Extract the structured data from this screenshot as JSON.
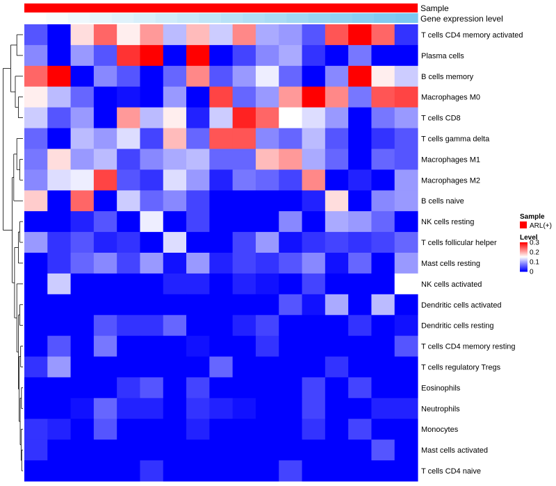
{
  "chart_data": {
    "type": "heatmap",
    "colors": {
      "low": "#0000FF",
      "mid": "#FFFFFF",
      "high": "#FF0000",
      "sample_bar": "#FF0000"
    },
    "annotations": {
      "sample_label": "Sample",
      "expression_label": "Gene expression level",
      "expression_values": [
        0.0,
        0.06,
        0.12,
        0.18,
        0.24,
        0.3,
        0.36,
        0.42,
        0.48,
        0.54,
        0.6,
        0.66,
        0.72,
        0.78,
        0.84,
        0.9,
        0.96,
        1.0
      ]
    },
    "rows": [
      "T cells CD4 memory activated",
      "Plasma cells",
      "B cells memory",
      "Macrophages M0",
      "T cells CD8",
      "T cells gamma delta",
      "Macrophages M1",
      "Macrophages M2",
      "B cells naive",
      "NK cells resting",
      "T cells follicular helper",
      "Mast cells resting",
      "NK cells activated",
      "Dendritic cells activated",
      "Dendritic cells resting",
      "T cells CD4 memory resting",
      "T cells regulatory  Tregs",
      "Eosinophils",
      "Neutrophils",
      "Monocytes",
      "Mast cells activated",
      "T cells CD4 naive"
    ],
    "values": [
      [
        0.05,
        0.0,
        0.17,
        0.24,
        0.16,
        0.21,
        0.11,
        0.19,
        0.12,
        0.22,
        0.1,
        0.09,
        0.05,
        0.25,
        0.31,
        0.24,
        0.03
      ],
      [
        0.08,
        0.0,
        0.09,
        0.05,
        0.27,
        0.31,
        0.0,
        0.31,
        0.0,
        0.04,
        0.08,
        0.1,
        0.03,
        0.0,
        0.07,
        0.0,
        0.0
      ],
      [
        0.24,
        0.31,
        0.0,
        0.08,
        0.05,
        0.0,
        0.06,
        0.22,
        0.05,
        0.09,
        0.14,
        0.06,
        0.0,
        0.08,
        0.31,
        0.16,
        0.12
      ],
      [
        0.16,
        0.11,
        0.06,
        0.0,
        0.01,
        0.0,
        0.09,
        0.0,
        0.26,
        0.06,
        0.09,
        0.21,
        0.31,
        0.22,
        0.07,
        0.25,
        0.26
      ],
      [
        0.12,
        0.05,
        0.09,
        0.0,
        0.21,
        0.11,
        0.16,
        0.02,
        0.12,
        0.28,
        0.24,
        0.15,
        0.13,
        0.09,
        0.0,
        0.07,
        0.09
      ],
      [
        0.06,
        0.0,
        0.11,
        0.09,
        0.13,
        0.04,
        0.19,
        0.06,
        0.25,
        0.25,
        0.08,
        0.06,
        0.11,
        0.05,
        0.0,
        0.03,
        0.05
      ],
      [
        0.07,
        0.17,
        0.09,
        0.11,
        0.04,
        0.08,
        0.1,
        0.11,
        0.06,
        0.06,
        0.19,
        0.21,
        0.1,
        0.06,
        0.0,
        0.06,
        0.05
      ],
      [
        0.08,
        0.13,
        0.14,
        0.26,
        0.05,
        0.03,
        0.13,
        0.09,
        0.02,
        0.07,
        0.06,
        0.04,
        0.22,
        0.0,
        0.02,
        0.0,
        0.09
      ],
      [
        0.18,
        0.0,
        0.24,
        0.0,
        0.12,
        0.06,
        0.08,
        0.04,
        0.0,
        0.0,
        0.0,
        0.0,
        0.02,
        0.17,
        0.0,
        0.08,
        0.09
      ],
      [
        0.0,
        0.0,
        0.02,
        0.05,
        0.0,
        0.14,
        0.0,
        0.04,
        0.0,
        0.0,
        0.0,
        0.08,
        0.0,
        0.1,
        0.09,
        0.06,
        0.0
      ],
      [
        0.09,
        0.03,
        0.05,
        0.02,
        0.03,
        0.0,
        0.13,
        0.0,
        0.0,
        0.04,
        0.09,
        0.01,
        0.03,
        0.04,
        0.03,
        0.04,
        0.06
      ],
      [
        0.0,
        0.03,
        0.06,
        0.08,
        0.04,
        0.09,
        0.01,
        0.09,
        0.02,
        0.04,
        0.03,
        0.05,
        0.08,
        0.01,
        0.06,
        0.0,
        0.09
      ],
      [
        0.0,
        0.12,
        0.0,
        0.0,
        0.0,
        0.0,
        0.02,
        0.02,
        0.0,
        0.02,
        0.01,
        0.0,
        0.04,
        0.0,
        0.0,
        0.0,
        0.15
      ],
      [
        0.0,
        0.0,
        0.0,
        0.0,
        0.0,
        0.0,
        0.0,
        0.0,
        0.0,
        0.0,
        0.0,
        0.05,
        0.01,
        0.1,
        0.0,
        0.11,
        0.0
      ],
      [
        0.0,
        0.0,
        0.0,
        0.05,
        0.03,
        0.03,
        0.06,
        0.0,
        0.0,
        0.02,
        0.04,
        0.0,
        0.0,
        0.0,
        0.03,
        0.0,
        0.01
      ],
      [
        0.0,
        0.05,
        0.0,
        0.07,
        0.0,
        0.0,
        0.0,
        0.01,
        0.0,
        0.0,
        0.03,
        0.0,
        0.0,
        0.0,
        0.0,
        0.0,
        0.05
      ],
      [
        0.03,
        0.09,
        0.0,
        0.0,
        0.0,
        0.0,
        0.0,
        0.0,
        0.06,
        0.0,
        0.0,
        0.0,
        0.0,
        0.03,
        0.0,
        0.0,
        0.0
      ],
      [
        0.0,
        0.0,
        0.0,
        0.0,
        0.03,
        0.05,
        0.0,
        0.04,
        0.0,
        0.0,
        0.0,
        0.0,
        0.04,
        0.0,
        0.04,
        0.0,
        0.0
      ],
      [
        0.0,
        0.0,
        0.01,
        0.06,
        0.02,
        0.02,
        0.0,
        0.03,
        0.02,
        0.01,
        0.0,
        0.0,
        0.04,
        0.0,
        0.0,
        0.02,
        0.02
      ],
      [
        0.03,
        0.02,
        0.0,
        0.05,
        0.0,
        0.0,
        0.0,
        0.02,
        0.0,
        0.0,
        0.0,
        0.0,
        0.03,
        0.0,
        0.04,
        0.0,
        0.0
      ],
      [
        0.03,
        0.0,
        0.0,
        0.0,
        0.0,
        0.0,
        0.0,
        0.0,
        0.0,
        0.0,
        0.0,
        0.0,
        0.0,
        0.0,
        0.0,
        0.05,
        0.0
      ],
      [
        0.0,
        0.0,
        0.0,
        0.0,
        0.0,
        0.03,
        0.0,
        0.0,
        0.0,
        0.0,
        0.0,
        0.04,
        0.0,
        0.0,
        0.0,
        0.0,
        0.0
      ]
    ],
    "value_range": [
      0,
      0.3
    ],
    "legend": {
      "sample_title": "Sample",
      "sample_entry": "ARL(+)",
      "level_title": "Level",
      "level_ticks": [
        "0.3",
        "0.2",
        "0.1",
        "0"
      ],
      "level_tick_values": [
        0.3,
        0.2,
        0.1,
        0.0
      ],
      "placement": "right"
    },
    "dendrogram": "left, row clustering"
  }
}
